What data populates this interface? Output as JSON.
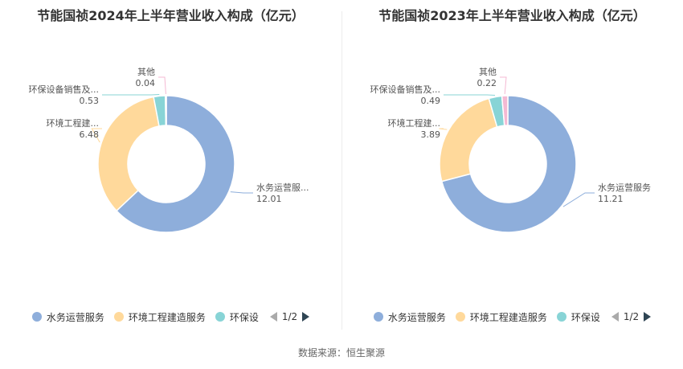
{
  "colors": {
    "series": [
      "#8eaedb",
      "#ffd99b",
      "#88d4d6",
      "#f4b9d3"
    ]
  },
  "legend_items": [
    "水务运营服务",
    "环境工程建造服务",
    "环保设"
  ],
  "pager": "1/2",
  "source": "数据来源：恒生聚源",
  "chart_data": [
    {
      "type": "pie",
      "title": "节能国祯2024年上半年营业收入构成（亿元）",
      "slices": [
        {
          "name": "水务运营服务",
          "label": "水务运营服...",
          "value": 12.01,
          "value_label": "12.01"
        },
        {
          "name": "环境工程建造服务",
          "label": "环境工程建...",
          "value": 6.48,
          "value_label": "6.48"
        },
        {
          "name": "环保设备销售及服务",
          "label": "环保设备销售及...",
          "value": 0.53,
          "value_label": "0.53"
        },
        {
          "name": "其他",
          "label": "其他",
          "value": 0.04,
          "value_label": "0.04"
        }
      ]
    },
    {
      "type": "pie",
      "title": "节能国祯2023年上半年营业收入构成（亿元）",
      "slices": [
        {
          "name": "水务运营服务",
          "label": "水务运营服务",
          "value": 11.21,
          "value_label": "11.21"
        },
        {
          "name": "环境工程建造服务",
          "label": "环境工程建...",
          "value": 3.89,
          "value_label": "3.89"
        },
        {
          "name": "环保设备销售及服务",
          "label": "环保设备销售及...",
          "value": 0.49,
          "value_label": "0.49"
        },
        {
          "name": "其他",
          "label": "其他",
          "value": 0.22,
          "value_label": "0.22"
        }
      ]
    }
  ]
}
